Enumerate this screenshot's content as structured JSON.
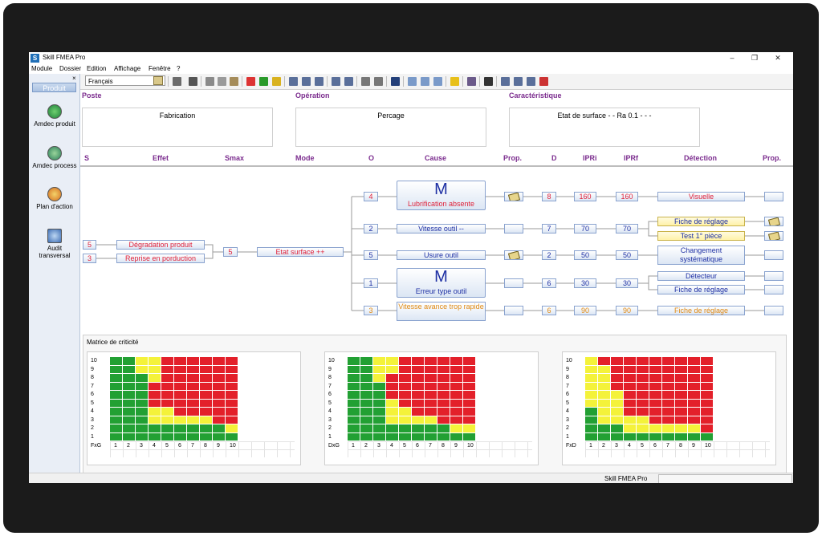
{
  "window": {
    "title": "Skill FMEA Pro",
    "logo_letter": "S",
    "controls": {
      "minimize": "–",
      "maximize": "❐",
      "close": "✕"
    }
  },
  "menu": [
    "Module",
    "Dossier",
    "Edition",
    "Affichage",
    "Fenêtre",
    "?"
  ],
  "toolbar": {
    "language": "Français"
  },
  "left_panel": {
    "close": "×",
    "tab": "Produit",
    "items": [
      {
        "label": "Amdec produit",
        "icon": "amdec-produit-icon"
      },
      {
        "label": "Amdec process",
        "icon": "amdec-process-icon"
      },
      {
        "label": "Plan d'action",
        "icon": "plan-action-icon"
      },
      {
        "label": "Audit transversal",
        "icon": "audit-icon"
      }
    ]
  },
  "sections": {
    "poste": {
      "label": "Poste",
      "value": "Fabrication"
    },
    "operation": {
      "label": "Opération",
      "value": "Percage"
    },
    "caracteristique": {
      "label": "Caractéristique",
      "value": "Etat de surface -  - Ra 0.1 -  -  -"
    }
  },
  "columns": [
    "S",
    "Effet",
    "Smax",
    "Mode",
    "O",
    "Cause",
    "Prop.",
    "D",
    "IPRi",
    "IPRf",
    "Détection",
    "Prop."
  ],
  "effects": [
    {
      "s": "5",
      "label": "Dégradation produit"
    },
    {
      "s": "3",
      "label": "Reprise en porduction"
    }
  ],
  "smax": "5",
  "mode": "Etat surface ++",
  "causes": [
    {
      "o": "4",
      "mark": "M",
      "label": "Lubrification absente",
      "prop": true,
      "d": "8",
      "ipri": "160",
      "iprf": "160",
      "color": "red"
    },
    {
      "o": "2",
      "mark": "",
      "label": "Vitesse outil --",
      "prop": false,
      "d": "7",
      "ipri": "70",
      "iprf": "70",
      "color": "blue"
    },
    {
      "o": "5",
      "mark": "",
      "label": "Usure outil",
      "prop": true,
      "d": "2",
      "ipri": "50",
      "iprf": "50",
      "color": "blue"
    },
    {
      "o": "1",
      "mark": "M",
      "label": "Erreur type outil",
      "prop": false,
      "d": "6",
      "ipri": "30",
      "iprf": "30",
      "color": "blue"
    },
    {
      "o": "3",
      "mark": "",
      "label": "Vitesse avance trop rapide",
      "prop": false,
      "d": "6",
      "ipri": "90",
      "iprf": "90",
      "color": "orange"
    }
  ],
  "detections": [
    {
      "label": "Visuelle",
      "color": "red",
      "yellow": false,
      "prop": false
    },
    {
      "label": "Fiche de réglage",
      "color": "blue",
      "yellow": true,
      "prop": true
    },
    {
      "label": "Test 1° pièce",
      "color": "blue",
      "yellow": true,
      "prop": true
    },
    {
      "label": "Changement systématique",
      "color": "blue",
      "yellow": false,
      "prop": false
    },
    {
      "label": "Détecteur",
      "color": "blue",
      "yellow": false,
      "prop": false
    },
    {
      "label": "Fiche de réglage",
      "color": "blue",
      "yellow": false,
      "prop": false
    },
    {
      "label": "Fiche de réglage",
      "color": "orange",
      "yellow": false,
      "prop": false
    }
  ],
  "matrix": {
    "title": "Matrice de criticité",
    "y_ticks": [
      "10",
      "9",
      "8",
      "7",
      "6",
      "5",
      "4",
      "3",
      "2",
      "1"
    ],
    "x_ticks": [
      "1",
      "2",
      "3",
      "4",
      "5",
      "6",
      "7",
      "8",
      "9",
      "10"
    ],
    "colors": {
      "G": "#22a033",
      "Y": "#f4f23a",
      "R": "#e3202a",
      "W": "#ffffff"
    },
    "grids": [
      {
        "corner": "FxG",
        "rows": [
          "GGYYRRRRRR",
          "GGYYRRRRRR",
          "GGGYRRRRRR",
          "GGGRRRRRRR",
          "GGGRRRRRRR",
          "GGGRRRRRRR",
          "GGGYYRRRRR",
          "GGGYYYYYRR",
          "GGGGGGGGGY",
          "GGGGGGGGGG"
        ]
      },
      {
        "corner": "DxG",
        "rows": [
          "GGYYRRRRRR",
          "GGYYRRRRRR",
          "GGYRRRRRRR",
          "GGGRRRRRRR",
          "GGGRRRRRRR",
          "GGGYRRRRRR",
          "GGGYYRRRRR",
          "GGGYYYYRRR",
          "GGGGGGGGYY",
          "GGGGGGGGGG"
        ]
      },
      {
        "corner": "FxD",
        "rows": [
          "YRRRRRRRRR",
          "YYRRRRRRRR",
          "YYRRRRRRRR",
          "YYRRRRRRRR",
          "YYYRRRRRRR",
          "YYYRRRRRRR",
          "GYYRRRRRRR",
          "GYYYYRRRRR",
          "GGGYYYYYYR",
          "GGGGGGGGGG"
        ]
      }
    ]
  },
  "status": {
    "text": "Skill FMEA Pro"
  }
}
